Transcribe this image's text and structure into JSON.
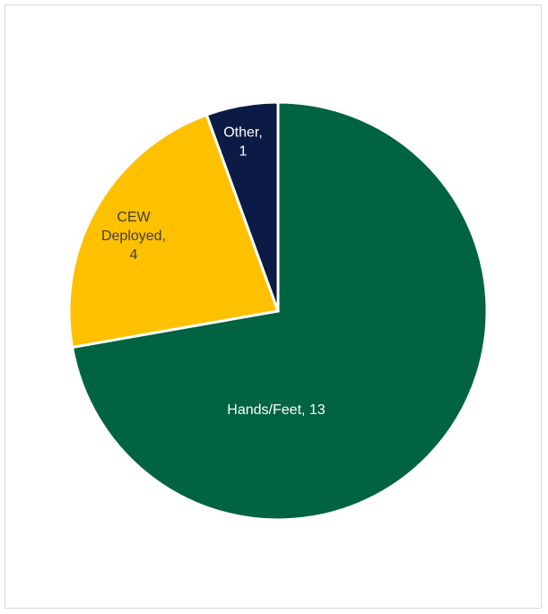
{
  "chart_data": {
    "type": "pie",
    "title": "",
    "slices": [
      {
        "label": "Hands/Feet",
        "value": 13,
        "display": [
          "Hands/Feet, 13"
        ],
        "color": "#006341",
        "text_color": "#ffffff"
      },
      {
        "label": "CEW Deployed",
        "value": 4,
        "display": [
          "CEW",
          "Deployed,",
          "4"
        ],
        "color": "#FFC000",
        "text_color": "#404040"
      },
      {
        "label": "Other",
        "value": 1,
        "display": [
          "Other,",
          "1"
        ],
        "color": "#0B1B45",
        "text_color": "#ffffff"
      }
    ],
    "legend": "none",
    "start_angle_deg": 0,
    "direction": "clockwise"
  }
}
